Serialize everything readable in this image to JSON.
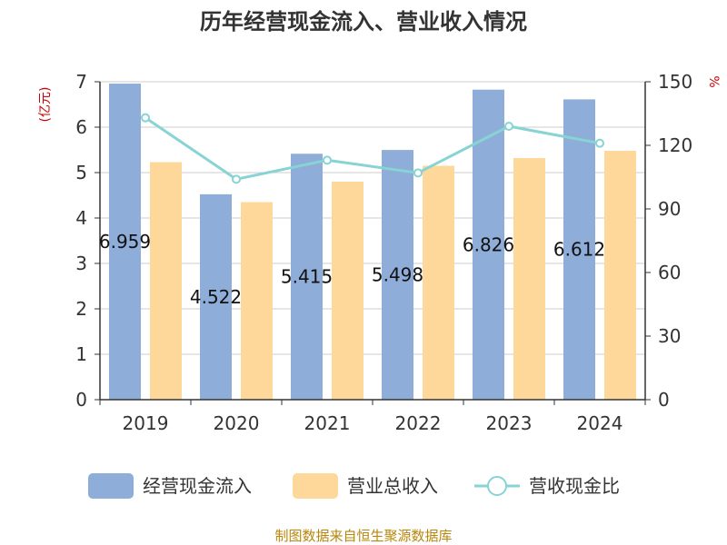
{
  "chart_data": {
    "type": "bar",
    "title": "历年经营现金流入、营业收入情况",
    "categories": [
      "2019",
      "2020",
      "2021",
      "2022",
      "2023",
      "2024"
    ],
    "series": [
      {
        "name": "经营现金流入",
        "kind": "bar",
        "axis": "left",
        "color": "#8eadd9",
        "values": [
          6.959,
          4.522,
          5.415,
          5.498,
          6.826,
          6.612
        ]
      },
      {
        "name": "营业总收入",
        "kind": "bar",
        "axis": "left",
        "color": "#fdd89a",
        "values": [
          5.23,
          4.35,
          4.8,
          5.15,
          5.32,
          5.48
        ]
      },
      {
        "name": "营收现金比",
        "kind": "line",
        "axis": "right",
        "color": "#88d3d3",
        "values": [
          133,
          104,
          113,
          107,
          129,
          121
        ]
      }
    ],
    "data_labels": [
      "6.959",
      "4.522",
      "5.415",
      "5.498",
      "6.826",
      "6.612"
    ],
    "left_axis": {
      "unit": "(亿元)",
      "min": 0,
      "max": 7,
      "ticks": [
        "0",
        "1",
        "2",
        "3",
        "4",
        "5",
        "6",
        "7"
      ]
    },
    "right_axis": {
      "unit": "%",
      "min": 0,
      "max": 150,
      "ticks": [
        "0",
        "30",
        "60",
        "90",
        "120",
        "150"
      ]
    },
    "grid": true,
    "legend": "bottom",
    "source": "制图数据来自恒生聚源数据库"
  }
}
